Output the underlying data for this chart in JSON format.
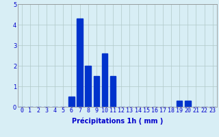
{
  "categories": [
    0,
    1,
    2,
    3,
    4,
    5,
    6,
    7,
    8,
    9,
    10,
    11,
    12,
    13,
    14,
    15,
    16,
    17,
    18,
    19,
    20,
    21,
    22,
    23
  ],
  "values": [
    0,
    0,
    0,
    0,
    0,
    0,
    0.5,
    4.3,
    2.0,
    1.5,
    2.6,
    1.5,
    0,
    0,
    0,
    0,
    0,
    0,
    0,
    0.3,
    0.3,
    0,
    0,
    0
  ],
  "bar_color": "#0033cc",
  "background_color": "#d8eef5",
  "grid_color": "#b0c8c8",
  "xlabel": "Précipitations 1h ( mm )",
  "ylim": [
    0,
    5
  ],
  "yticks": [
    0,
    1,
    2,
    3,
    4,
    5
  ],
  "xlabel_fontsize": 7,
  "tick_fontsize": 6,
  "bar_width": 0.7
}
